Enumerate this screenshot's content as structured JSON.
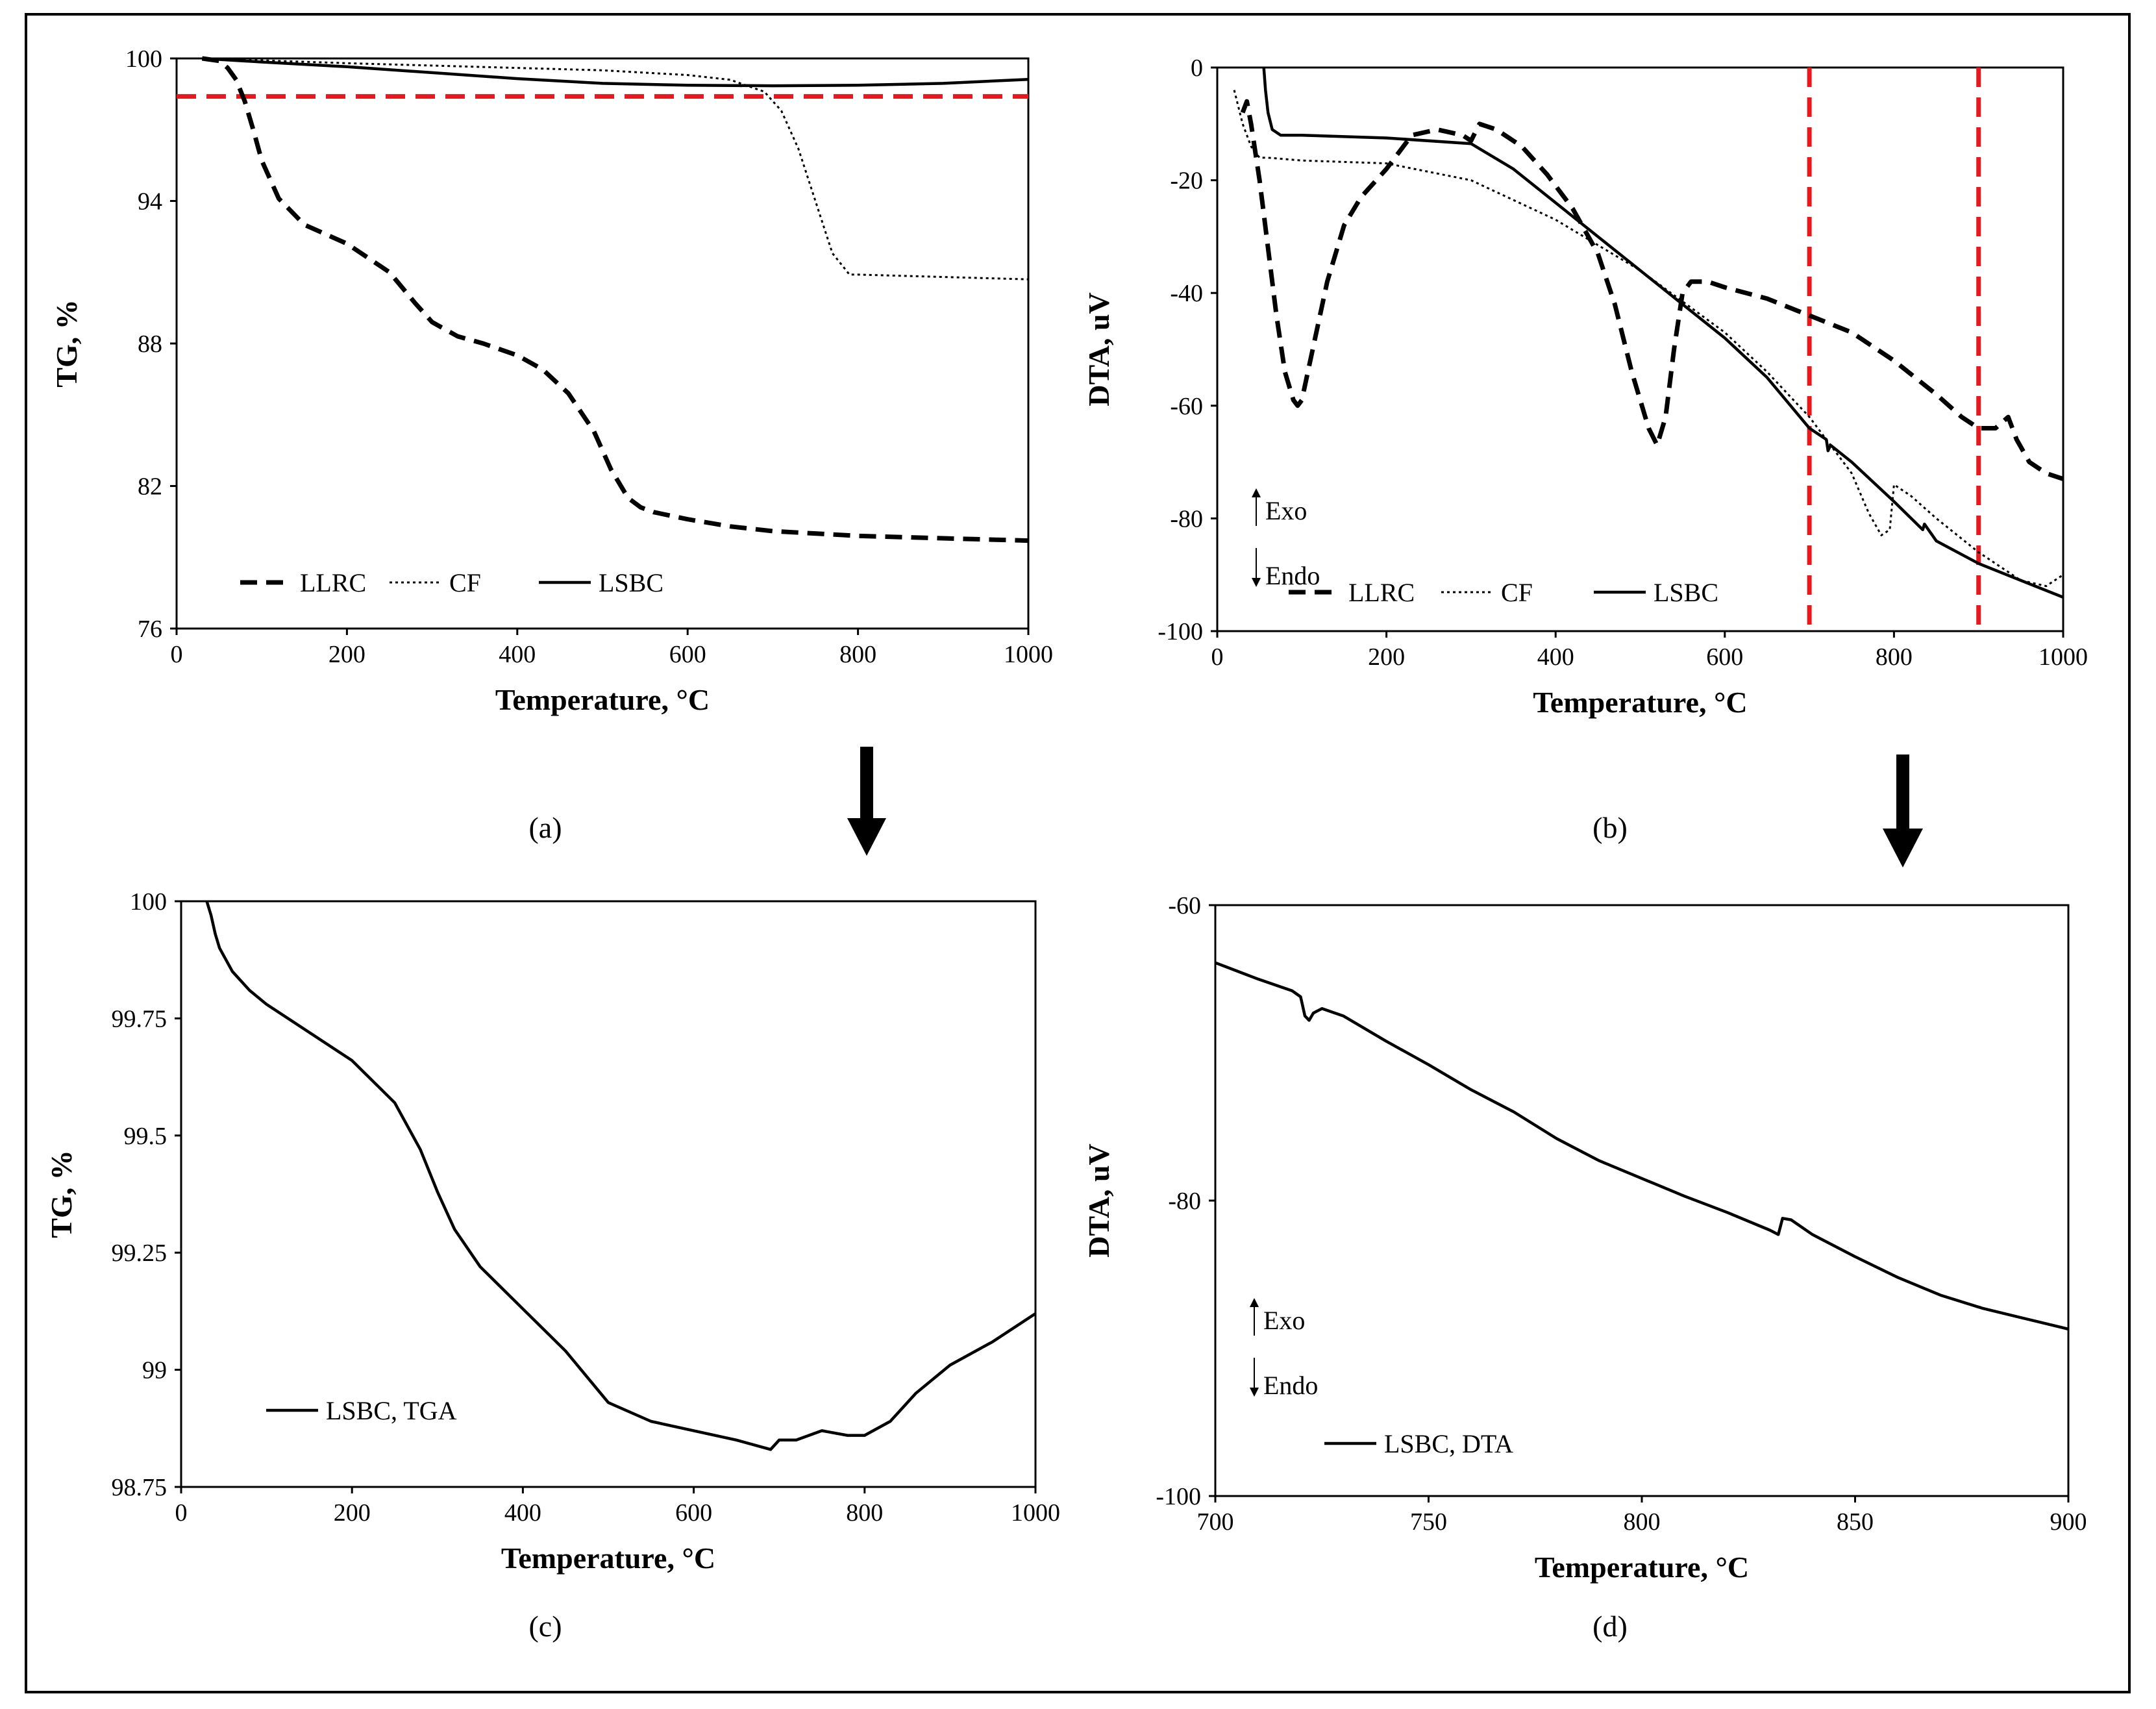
{
  "chart_data": [
    {
      "id": "a",
      "type": "line",
      "caption": "(a)",
      "xlabel": "Temperature, °C",
      "ylabel": "TG, %",
      "xlim": [
        0,
        1000
      ],
      "ylim": [
        76,
        100
      ],
      "xticks": [
        0,
        200,
        400,
        600,
        800,
        1000
      ],
      "yticks": [
        76,
        82,
        88,
        94,
        100
      ],
      "legend": {
        "position": "bottom-left",
        "entries": [
          "LLRC",
          "CF",
          "LSBC"
        ]
      },
      "reference_lines": [
        {
          "orientation": "horizontal",
          "value": 98.4,
          "color": "#e8191c"
        }
      ],
      "series": [
        {
          "name": "LLRC",
          "style": "dashed",
          "x": [
            30,
            50,
            60,
            70,
            80,
            90,
            100,
            120,
            150,
            200,
            250,
            280,
            300,
            330,
            360,
            400,
            430,
            460,
            490,
            510,
            530,
            545,
            560,
            600,
            650,
            700,
            800,
            900,
            1000
          ],
          "y": [
            100,
            99.9,
            99.6,
            99.1,
            98.2,
            97.0,
            95.7,
            94.1,
            93.0,
            92.2,
            91.0,
            89.7,
            88.9,
            88.3,
            88.0,
            87.5,
            86.9,
            85.9,
            84.3,
            82.7,
            81.5,
            81.1,
            80.9,
            80.6,
            80.3,
            80.1,
            79.9,
            79.8,
            79.7
          ]
        },
        {
          "name": "CF",
          "style": "dotted",
          "x": [
            30,
            200,
            400,
            500,
            600,
            650,
            690,
            710,
            730,
            750,
            770,
            790,
            800,
            900,
            1000
          ],
          "y": [
            100,
            99.8,
            99.6,
            99.5,
            99.3,
            99.1,
            98.6,
            97.8,
            96.2,
            94.0,
            91.8,
            90.9,
            90.9,
            90.8,
            90.7
          ]
        },
        {
          "name": "LSBC",
          "style": "solid",
          "x": [
            30,
            100,
            200,
            300,
            400,
            500,
            600,
            700,
            800,
            900,
            1000
          ],
          "y": [
            100,
            99.85,
            99.65,
            99.4,
            99.15,
            98.95,
            98.87,
            98.85,
            98.87,
            98.95,
            99.12
          ]
        }
      ]
    },
    {
      "id": "b",
      "type": "line",
      "caption": "(b)",
      "xlabel": "Temperature, °C",
      "ylabel": "DTA, uV",
      "xlim": [
        0,
        1000
      ],
      "ylim": [
        -100,
        0
      ],
      "xticks": [
        0,
        200,
        400,
        600,
        800,
        1000
      ],
      "yticks": [
        -100,
        -80,
        -60,
        -40,
        -20,
        0
      ],
      "legend": {
        "position": "bottom-left",
        "entries": [
          "LLRC",
          "CF",
          "LSBC"
        ]
      },
      "annotations": [
        "Exo",
        "Endo"
      ],
      "reference_lines": [
        {
          "orientation": "vertical",
          "value": 700,
          "color": "#e8191c"
        },
        {
          "orientation": "vertical",
          "value": 900,
          "color": "#e8191c"
        }
      ],
      "series": [
        {
          "name": "LLRC",
          "style": "dashed",
          "x": [
            30,
            35,
            40,
            50,
            60,
            70,
            80,
            90,
            95,
            100,
            110,
            130,
            150,
            170,
            200,
            230,
            260,
            290,
            300,
            310,
            330,
            360,
            390,
            420,
            450,
            470,
            490,
            510,
            520,
            530,
            540,
            550,
            560,
            580,
            600,
            650,
            700,
            750,
            800,
            850,
            880,
            900,
            920,
            935,
            945,
            960,
            980,
            1000
          ],
          "y": [
            -8,
            -6,
            -10,
            -20,
            -32,
            -44,
            -54,
            -59,
            -60,
            -59,
            -52,
            -38,
            -28,
            -23,
            -18,
            -12,
            -11,
            -12,
            -13,
            -10,
            -11,
            -14,
            -19,
            -25,
            -33,
            -42,
            -54,
            -64,
            -67,
            -62,
            -50,
            -40,
            -38,
            -38,
            -39,
            -41,
            -44,
            -47,
            -52,
            -58,
            -62,
            -64,
            -64,
            -62,
            -66,
            -70,
            -72,
            -73
          ]
        },
        {
          "name": "CF",
          "style": "dotted",
          "x": [
            20,
            30,
            40,
            50,
            60,
            100,
            200,
            300,
            400,
            500,
            600,
            650,
            700,
            750,
            770,
            785,
            795,
            800,
            820,
            850,
            900,
            950,
            980,
            1000
          ],
          "y": [
            -4,
            -10,
            -14,
            -16,
            -16,
            -16.5,
            -17,
            -20,
            -27,
            -36,
            -47,
            -54,
            -62,
            -72,
            -79,
            -83,
            -82,
            -74,
            -76,
            -80,
            -86,
            -91,
            -92,
            -90
          ]
        },
        {
          "name": "LSBC",
          "style": "solid",
          "x": [
            55,
            57,
            60,
            65,
            75,
            80,
            100,
            200,
            300,
            350,
            400,
            450,
            500,
            550,
            600,
            650,
            700,
            720,
            722,
            725,
            750,
            800,
            834,
            836,
            850,
            900,
            950,
            1000
          ],
          "y": [
            0,
            -4,
            -8,
            -11,
            -12,
            -12,
            -12,
            -12.5,
            -13.5,
            -18,
            -24,
            -30,
            -36,
            -42,
            -48,
            -55,
            -64,
            -66,
            -68,
            -67,
            -70,
            -77,
            -82,
            -81,
            -84,
            -88,
            -91,
            -94
          ]
        }
      ]
    },
    {
      "id": "c",
      "type": "line",
      "caption": "(c)",
      "xlabel": "Temperature, °C",
      "ylabel": "TG, %",
      "xlim": [
        0,
        1000
      ],
      "ylim": [
        98.75,
        100
      ],
      "xticks": [
        0,
        200,
        400,
        600,
        800,
        1000
      ],
      "yticks": [
        "98.75",
        "99",
        "99.25",
        "99.5",
        "99.75",
        "100"
      ],
      "legend": {
        "position": "bottom-left",
        "entries": [
          "LSBC, TGA"
        ]
      },
      "series": [
        {
          "name": "LSBC, TGA",
          "style": "solid",
          "x": [
            30,
            35,
            40,
            45,
            60,
            80,
            100,
            150,
            200,
            250,
            280,
            300,
            320,
            350,
            400,
            450,
            500,
            550,
            600,
            650,
            690,
            700,
            720,
            750,
            780,
            800,
            830,
            860,
            900,
            950,
            1000
          ],
          "y": [
            100,
            99.97,
            99.93,
            99.9,
            99.85,
            99.81,
            99.78,
            99.72,
            99.66,
            99.57,
            99.47,
            99.38,
            99.3,
            99.22,
            99.13,
            99.04,
            98.93,
            98.89,
            98.87,
            98.85,
            98.83,
            98.85,
            98.85,
            98.87,
            98.86,
            98.86,
            98.89,
            98.95,
            99.01,
            99.06,
            99.12
          ]
        }
      ]
    },
    {
      "id": "d",
      "type": "line",
      "caption": "(d)",
      "xlabel": "Temperature, °C",
      "ylabel": "DTA, uV",
      "xlim": [
        700,
        900
      ],
      "ylim": [
        -100,
        -60
      ],
      "xticks": [
        700,
        750,
        800,
        850,
        900
      ],
      "yticks": [
        -100,
        -80,
        -60
      ],
      "legend": {
        "position": "bottom-left",
        "entries": [
          "LSBC, DTA"
        ]
      },
      "annotations": [
        "Exo",
        "Endo"
      ],
      "series": [
        {
          "name": "LSBC, DTA",
          "style": "solid",
          "x": [
            700,
            710,
            718,
            720,
            721,
            722,
            723,
            725,
            730,
            740,
            750,
            760,
            770,
            780,
            790,
            800,
            810,
            820,
            830,
            832,
            833,
            835,
            840,
            850,
            860,
            870,
            880,
            890,
            900
          ],
          "y": [
            -63.9,
            -65,
            -65.8,
            -66.2,
            -67.5,
            -67.8,
            -67.3,
            -67,
            -67.5,
            -69.2,
            -70.8,
            -72.5,
            -74,
            -75.8,
            -77.3,
            -78.5,
            -79.7,
            -80.8,
            -82,
            -82.3,
            -81.2,
            -81.3,
            -82.3,
            -83.8,
            -85.2,
            -86.4,
            -87.3,
            -88,
            -88.7
          ]
        }
      ]
    }
  ]
}
